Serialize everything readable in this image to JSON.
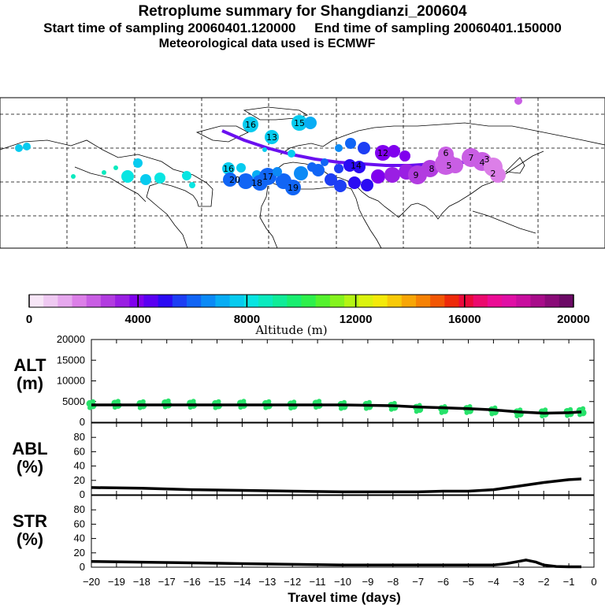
{
  "header": {
    "title": "Retroplume summary for Shangdianzi_200604",
    "sampling_line": "Start time of sampling 20060401.120000     End time of sampling 20060401.150000",
    "met_line": "Meteorological data used is ECMWF"
  },
  "colorbar": {
    "label": "Altitude (m)",
    "ticks": [
      "0",
      "4000",
      "8000",
      "12000",
      "16000",
      "20000"
    ],
    "colors": [
      "#f7e6f7",
      "#efc9f2",
      "#e6a8ee",
      "#dc7fe8",
      "#c95ee4",
      "#b23ce0",
      "#9a1fe3",
      "#8000ee",
      "#5a00f2",
      "#2b0bf3",
      "#1d3ef4",
      "#1165f5",
      "#0b8af6",
      "#08adf4",
      "#07cbef",
      "#08e5e2",
      "#0beabe",
      "#10ec98",
      "#19ee70",
      "#2ef04c",
      "#55f22e",
      "#85f31e",
      "#b4f414",
      "#dbf30e",
      "#f4ea0a",
      "#f8ca08",
      "#f8a606",
      "#f68205",
      "#f25705",
      "#ee2a0a",
      "#ea0a3a",
      "#ec0a6e",
      "#ec0c95",
      "#e00fa5",
      "#c80e9e",
      "#a80c8a",
      "#8a0b78",
      "#6c0a66"
    ]
  },
  "map_labels": [
    {
      "t": "16",
      "c": "#2b0bf3"
    },
    {
      "t": "15",
      "c": "#2b0bf3"
    },
    {
      "t": "16",
      "c": "#2b0bf3"
    },
    {
      "t": "13",
      "c": "#2b0bf3"
    },
    {
      "t": "17",
      "c": "#8000ee"
    },
    {
      "t": "18",
      "c": "#8000ee"
    },
    {
      "t": "20",
      "c": "#8000ee"
    },
    {
      "t": "19",
      "c": "#8000ee"
    },
    {
      "t": "14",
      "c": "#9a1fe3"
    },
    {
      "t": "12",
      "c": "#9a1fe3"
    },
    {
      "t": "9",
      "c": "#b23ce0"
    },
    {
      "t": "8",
      "c": "#b23ce0"
    },
    {
      "t": "7",
      "c": "#b23ce0"
    },
    {
      "t": "6",
      "c": "#c95ee4"
    },
    {
      "t": "5",
      "c": "#c95ee4"
    },
    {
      "t": "4",
      "c": "#c95ee4"
    },
    {
      "t": "3",
      "c": "#c95ee4"
    },
    {
      "t": "2",
      "c": "#c95ee4"
    }
  ],
  "chart_data": [
    {
      "type": "scatter",
      "title": "Retroplume summary for Shangdianzi_200604",
      "xlabel": "",
      "ylabel": "",
      "description": "World map of plume centroid positions coloured by altitude"
    },
    {
      "type": "line",
      "ylabel": "ALT\n(m)",
      "ylabel_lines": [
        "ALT",
        "(m)"
      ],
      "xlim": [
        -20,
        0
      ],
      "ylim": [
        0,
        20000
      ],
      "yticks": [
        "0",
        "5000",
        "10000",
        "15000",
        "20000"
      ],
      "x": [
        -20,
        -19,
        -18,
        -17,
        -16,
        -15,
        -14,
        -13,
        -12,
        -11,
        -10,
        -9,
        -8,
        -7,
        -6,
        -5,
        -4,
        -3,
        -2,
        -1,
        -0.5
      ],
      "series": [
        {
          "name": "mean altitude",
          "values": [
            4200,
            4200,
            4200,
            4200,
            4200,
            4200,
            4200,
            4200,
            4200,
            4200,
            4200,
            4100,
            4000,
            3700,
            3500,
            3300,
            3000,
            2500,
            2200,
            2300,
            2500
          ]
        }
      ],
      "scatter_values": [
        4200,
        4300,
        4200,
        4400,
        4300,
        4200,
        4300,
        4200,
        4100,
        4300,
        4000,
        4000,
        3800,
        3300,
        3000,
        3000,
        2700,
        2200,
        2200,
        2300,
        2500
      ]
    },
    {
      "type": "line",
      "ylabel": "ABL\n(%)",
      "ylabel_lines": [
        "ABL",
        "(%)"
      ],
      "xlim": [
        -20,
        0
      ],
      "ylim": [
        0,
        100
      ],
      "yticks": [
        "0",
        "20",
        "40",
        "60",
        "80"
      ],
      "x": [
        -20,
        -18,
        -16,
        -14,
        -12,
        -10,
        -8,
        -7,
        -6,
        -5,
        -4,
        -3,
        -2,
        -1,
        -0.5
      ],
      "series": [
        {
          "name": "ABL fraction",
          "values": [
            10,
            9,
            7,
            6,
            5,
            4,
            4,
            4,
            5,
            5,
            7,
            12,
            17,
            21,
            22
          ]
        }
      ]
    },
    {
      "type": "line",
      "ylabel": "STR\n(%)",
      "ylabel_lines": [
        "STR",
        "(%)"
      ],
      "xlim": [
        -20,
        0
      ],
      "ylim": [
        0,
        100
      ],
      "yticks": [
        "0",
        "20",
        "40",
        "60",
        "80"
      ],
      "xticks": [
        "−20",
        "−19",
        "−18",
        "−17",
        "−16",
        "−15",
        "−14",
        "−13",
        "−12",
        "−11",
        "−10",
        "−9",
        "−8",
        "−7",
        "−6",
        "−5",
        "−4",
        "−3",
        "−2",
        "−1",
        "0"
      ],
      "xlabel": "Travel time (days)",
      "x": [
        -20,
        -18,
        -16,
        -14,
        -12,
        -10,
        -8,
        -6,
        -4,
        -3.5,
        -3,
        -2.7,
        -2.3,
        -2,
        -1.5,
        -1,
        -0.5
      ],
      "series": [
        {
          "name": "stratospheric fraction",
          "values": [
            8,
            7,
            6,
            5,
            4,
            3,
            3,
            3,
            3,
            5,
            8,
            10,
            7,
            3,
            1,
            0.5,
            0.5
          ]
        }
      ]
    }
  ]
}
